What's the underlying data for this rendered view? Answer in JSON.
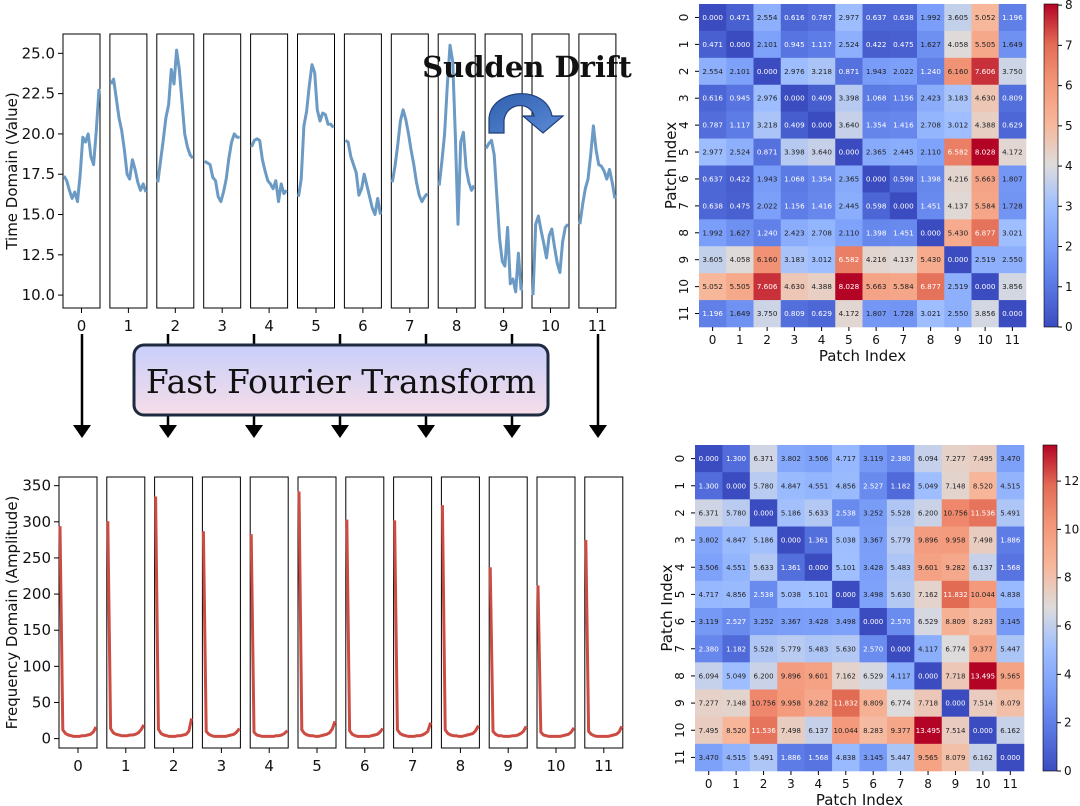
{
  "chart_data": [
    {
      "type": "line",
      "panel": "time-domain",
      "ylabel": "Time Domain (Value)",
      "yticks": [
        10.0,
        12.5,
        15.0,
        17.5,
        20.0,
        22.5,
        25.0
      ],
      "yticks_labels": [
        "10.0",
        "12.5",
        "15.0",
        "17.5",
        "20.0",
        "22.5",
        "25.0"
      ],
      "ylim": [
        9.2,
        26.2
      ],
      "patch_labels": [
        "0",
        "1",
        "2",
        "3",
        "4",
        "5",
        "6",
        "7",
        "8",
        "9",
        "10",
        "11"
      ],
      "annotation": "Sudden Drift",
      "series": [
        {
          "values": [
            17.4,
            17.1,
            16.5,
            16.0,
            16.4,
            15.8,
            17.5,
            19.8,
            19.5,
            20.0,
            18.6,
            18.1,
            20.2,
            22.8
          ]
        },
        {
          "values": [
            23.1,
            23.4,
            22.2,
            21.0,
            20.2,
            19.0,
            17.5,
            17.2,
            18.4,
            17.8,
            17.0,
            16.5,
            16.9,
            16.4
          ]
        },
        {
          "values": [
            17.0,
            18.3,
            19.6,
            21.0,
            21.8,
            24.0,
            23.1,
            25.2,
            24.0,
            22.0,
            20.0,
            19.2,
            18.7,
            18.5
          ]
        },
        {
          "values": [
            18.3,
            18.2,
            18.1,
            17.3,
            17.1,
            16.1,
            15.8,
            16.4,
            17.2,
            18.5,
            19.5,
            20.0,
            19.8,
            19.8
          ]
        },
        {
          "values": [
            19.2,
            19.6,
            19.7,
            19.6,
            18.4,
            17.7,
            17.1,
            16.9,
            16.6,
            17.1,
            15.8,
            16.9,
            16.3,
            16.5
          ]
        },
        {
          "values": [
            16.1,
            17.2,
            20.5,
            21.4,
            23.0,
            24.3,
            23.8,
            21.5,
            20.8,
            21.3,
            21.2,
            20.6,
            20.6,
            20.4
          ]
        },
        {
          "values": [
            19.6,
            19.5,
            18.6,
            18.1,
            17.6,
            16.2,
            16.6,
            17.5,
            16.8,
            16.1,
            15.4,
            15.0,
            16.0,
            15.0
          ]
        },
        {
          "values": [
            17.0,
            18.0,
            19.3,
            20.8,
            21.5,
            20.9,
            20.0,
            19.0,
            18.1,
            17.0,
            16.2,
            15.8,
            16.1,
            16.3
          ]
        },
        {
          "values": [
            16.8,
            18.3,
            20.0,
            23.0,
            25.5,
            24.5,
            19.8,
            14.4,
            19.5,
            20.1,
            17.9,
            17.0,
            16.5,
            16.8
          ]
        },
        {
          "values": [
            19.1,
            19.4,
            19.6,
            18.7,
            16.1,
            13.5,
            12.1,
            11.8,
            14.2,
            10.7,
            11.0,
            10.2,
            12.6,
            10.3
          ]
        },
        {
          "values": [
            10.0,
            14.4,
            14.9,
            14.0,
            13.2,
            12.3,
            13.7,
            14.1,
            13.0,
            12.0,
            11.4,
            13.3,
            14.2,
            14.4
          ]
        },
        {
          "values": [
            14.4,
            15.6,
            16.6,
            17.2,
            18.7,
            20.5,
            19.0,
            18.1,
            18.0,
            17.7,
            17.2,
            17.8,
            17.0,
            16.0
          ]
        }
      ]
    },
    {
      "type": "line",
      "panel": "frequency-domain",
      "ylabel": "Frequency Domain (Amplitude)",
      "yticks": [
        0,
        50,
        100,
        150,
        200,
        250,
        300,
        350
      ],
      "yticks_labels": [
        "0",
        "50",
        "100",
        "150",
        "200",
        "250",
        "300",
        "350"
      ],
      "ylim": [
        -13,
        362
      ],
      "patch_labels": [
        "0",
        "1",
        "2",
        "3",
        "4",
        "5",
        "6",
        "7",
        "8",
        "9",
        "10",
        "11"
      ],
      "series": [
        {
          "values": [
            294,
            12,
            7,
            5,
            4,
            3,
            3,
            3,
            4,
            4,
            5,
            6,
            9,
            16
          ]
        },
        {
          "values": [
            301,
            14,
            8,
            6,
            5,
            4,
            4,
            4,
            5,
            5,
            6,
            8,
            12,
            19
          ]
        },
        {
          "values": [
            335,
            13,
            7,
            5,
            4,
            3,
            3,
            3,
            4,
            4,
            5,
            6,
            10,
            28
          ]
        },
        {
          "values": [
            287,
            10,
            6,
            4,
            3,
            3,
            3,
            3,
            3,
            4,
            5,
            6,
            9,
            14
          ]
        },
        {
          "values": [
            283,
            9,
            5,
            4,
            3,
            3,
            3,
            3,
            3,
            4,
            4,
            5,
            7,
            11
          ]
        },
        {
          "values": [
            342,
            12,
            7,
            5,
            4,
            4,
            3,
            3,
            4,
            5,
            6,
            8,
            13,
            24
          ]
        },
        {
          "values": [
            303,
            11,
            6,
            4,
            3,
            3,
            3,
            3,
            3,
            4,
            5,
            6,
            9,
            14
          ]
        },
        {
          "values": [
            302,
            12,
            7,
            5,
            4,
            3,
            3,
            3,
            4,
            4,
            5,
            7,
            10,
            22
          ]
        },
        {
          "values": [
            323,
            12,
            7,
            5,
            4,
            4,
            3,
            3,
            4,
            5,
            6,
            7,
            11,
            18
          ]
        },
        {
          "values": [
            237,
            10,
            6,
            4,
            4,
            3,
            3,
            3,
            4,
            4,
            5,
            7,
            10,
            17
          ]
        },
        {
          "values": [
            212,
            9,
            5,
            4,
            3,
            3,
            3,
            3,
            3,
            4,
            5,
            6,
            9,
            15
          ]
        },
        {
          "values": [
            275,
            10,
            6,
            4,
            3,
            3,
            3,
            3,
            3,
            4,
            5,
            6,
            9,
            17
          ]
        }
      ]
    },
    {
      "type": "heatmap",
      "panel": "time-domain-distance",
      "xlabel": "Patch Index",
      "ylabel": "Patch Index",
      "vmin": 0,
      "vmax": 8.028,
      "colorbar_ticks": [
        0,
        1,
        2,
        3,
        4,
        5,
        6,
        7,
        8
      ],
      "colorbar_labels": [
        "0",
        "1",
        "2",
        "3",
        "4",
        "5",
        "6",
        "7",
        "8"
      ],
      "tick_labels": [
        "0",
        "1",
        "2",
        "3",
        "4",
        "5",
        "6",
        "7",
        "8",
        "9",
        "10",
        "11"
      ],
      "matrix": [
        [
          "0.000",
          "0.471",
          "2.554",
          "0.616",
          "0.787",
          "2.977",
          "0.637",
          "0.638",
          "1.992",
          "3.605",
          "5.052",
          "1.196"
        ],
        [
          "0.471",
          "0.000",
          "2.101",
          "0.945",
          "1.117",
          "2.524",
          "0.422",
          "0.475",
          "1.627",
          "4.058",
          "5.505",
          "1.649"
        ],
        [
          "2.554",
          "2.101",
          "0.000",
          "2.976",
          "3.218",
          "0.871",
          "1.943",
          "2.022",
          "1.240",
          "6.160",
          "7.606",
          "3.750"
        ],
        [
          "0.616",
          "0.945",
          "2.976",
          "0.000",
          "0.409",
          "3.398",
          "1.068",
          "1.156",
          "2.423",
          "3.183",
          "4.630",
          "0.809"
        ],
        [
          "0.787",
          "1.117",
          "3.218",
          "0.409",
          "0.000",
          "3.640",
          "1.354",
          "1.416",
          "2.708",
          "3.012",
          "4.388",
          "0.629"
        ],
        [
          "2.977",
          "2.524",
          "0.871",
          "3.398",
          "3.640",
          "0.000",
          "2.365",
          "2.445",
          "2.110",
          "6.582",
          "8.028",
          "4.172"
        ],
        [
          "0.637",
          "0.422",
          "1.943",
          "1.068",
          "1.354",
          "2.365",
          "0.000",
          "0.598",
          "1.398",
          "4.216",
          "5.663",
          "1.807"
        ],
        [
          "0.638",
          "0.475",
          "2.022",
          "1.156",
          "1.416",
          "2.445",
          "0.598",
          "0.000",
          "1.451",
          "4.137",
          "5.584",
          "1.728"
        ],
        [
          "1.992",
          "1.627",
          "1.240",
          "2.423",
          "2.708",
          "2.110",
          "1.398",
          "1.451",
          "0.000",
          "5.430",
          "6.877",
          "3.021"
        ],
        [
          "3.605",
          "4.058",
          "6.160",
          "3.183",
          "3.012",
          "6.582",
          "4.216",
          "4.137",
          "5.430",
          "0.000",
          "2.519",
          "2.550"
        ],
        [
          "5.052",
          "5.505",
          "7.606",
          "4.630",
          "4.388",
          "8.028",
          "5.663",
          "5.584",
          "6.877",
          "2.519",
          "0.000",
          "3.856"
        ],
        [
          "1.196",
          "1.649",
          "3.750",
          "0.809",
          "0.629",
          "4.172",
          "1.807",
          "1.728",
          "3.021",
          "2.550",
          "3.856",
          "0.000"
        ]
      ]
    },
    {
      "type": "heatmap",
      "panel": "frequency-domain-distance",
      "xlabel": "Patch Index",
      "ylabel": "Patch Index",
      "vmin": 0,
      "vmax": 13.495,
      "colorbar_ticks": [
        0,
        2,
        4,
        6,
        8,
        10,
        12
      ],
      "colorbar_labels": [
        "0",
        "2",
        "4",
        "6",
        "8",
        "10",
        "12"
      ],
      "tick_labels": [
        "0",
        "1",
        "2",
        "3",
        "4",
        "5",
        "6",
        "7",
        "8",
        "9",
        "10",
        "11"
      ],
      "matrix": [
        [
          "0.000",
          "1.300",
          "6.371",
          "3.802",
          "3.506",
          "4.717",
          "3.119",
          "2.380",
          "6.094",
          "7.277",
          "7.495",
          "3.470"
        ],
        [
          "1.300",
          "0.000",
          "5.780",
          "4.847",
          "4.551",
          "4.856",
          "2.527",
          "1.182",
          "5.049",
          "7.148",
          "8.520",
          "4.515"
        ],
        [
          "6.371",
          "5.780",
          "0.000",
          "5.186",
          "5.633",
          "2.538",
          "3.252",
          "5.528",
          "6.200",
          "10.756",
          "11.536",
          "5.491"
        ],
        [
          "3.802",
          "4.847",
          "5.186",
          "0.000",
          "1.361",
          "5.038",
          "3.367",
          "5.779",
          "9.896",
          "9.958",
          "7.498",
          "1.886"
        ],
        [
          "3.506",
          "4.551",
          "5.633",
          "1.361",
          "0.000",
          "5.101",
          "3.428",
          "5.483",
          "9.601",
          "9.282",
          "6.137",
          "1.568"
        ],
        [
          "4.717",
          "4.856",
          "2.538",
          "5.038",
          "5.101",
          "0.000",
          "3.498",
          "5.630",
          "7.162",
          "11.832",
          "10.044",
          "4.838"
        ],
        [
          "3.119",
          "2.527",
          "3.252",
          "3.367",
          "3.428",
          "3.498",
          "0.000",
          "2.570",
          "6.529",
          "8.809",
          "8.283",
          "3.145"
        ],
        [
          "2.380",
          "1.182",
          "5.528",
          "5.779",
          "5.483",
          "5.630",
          "2.570",
          "0.000",
          "4.117",
          "6.774",
          "9.377",
          "5.447"
        ],
        [
          "6.094",
          "5.049",
          "6.200",
          "9.896",
          "9.601",
          "7.162",
          "6.529",
          "4.117",
          "0.000",
          "7.718",
          "13.495",
          "9.565"
        ],
        [
          "7.277",
          "7.148",
          "10.756",
          "9.958",
          "9.282",
          "11.832",
          "8.809",
          "6.774",
          "7.718",
          "0.000",
          "7.514",
          "8.079"
        ],
        [
          "7.495",
          "8.520",
          "11.536",
          "7.498",
          "6.137",
          "10.044",
          "8.283",
          "9.377",
          "13.495",
          "7.514",
          "0.000",
          "6.162"
        ],
        [
          "3.470",
          "4.515",
          "5.491",
          "1.886",
          "1.568",
          "4.838",
          "3.145",
          "5.447",
          "9.565",
          "8.079",
          "6.162",
          "0.000"
        ]
      ]
    }
  ],
  "fft_box_label": "Fast Fourier Transform",
  "colors": {
    "time_line": "#6b9ac4",
    "freq_line": "#cc4b43",
    "box_fill_top": "#c8cffb",
    "box_fill_bottom": "#f5dce8",
    "box_border": "#1e2a40",
    "drift_arrow": "#3b6fc0"
  }
}
